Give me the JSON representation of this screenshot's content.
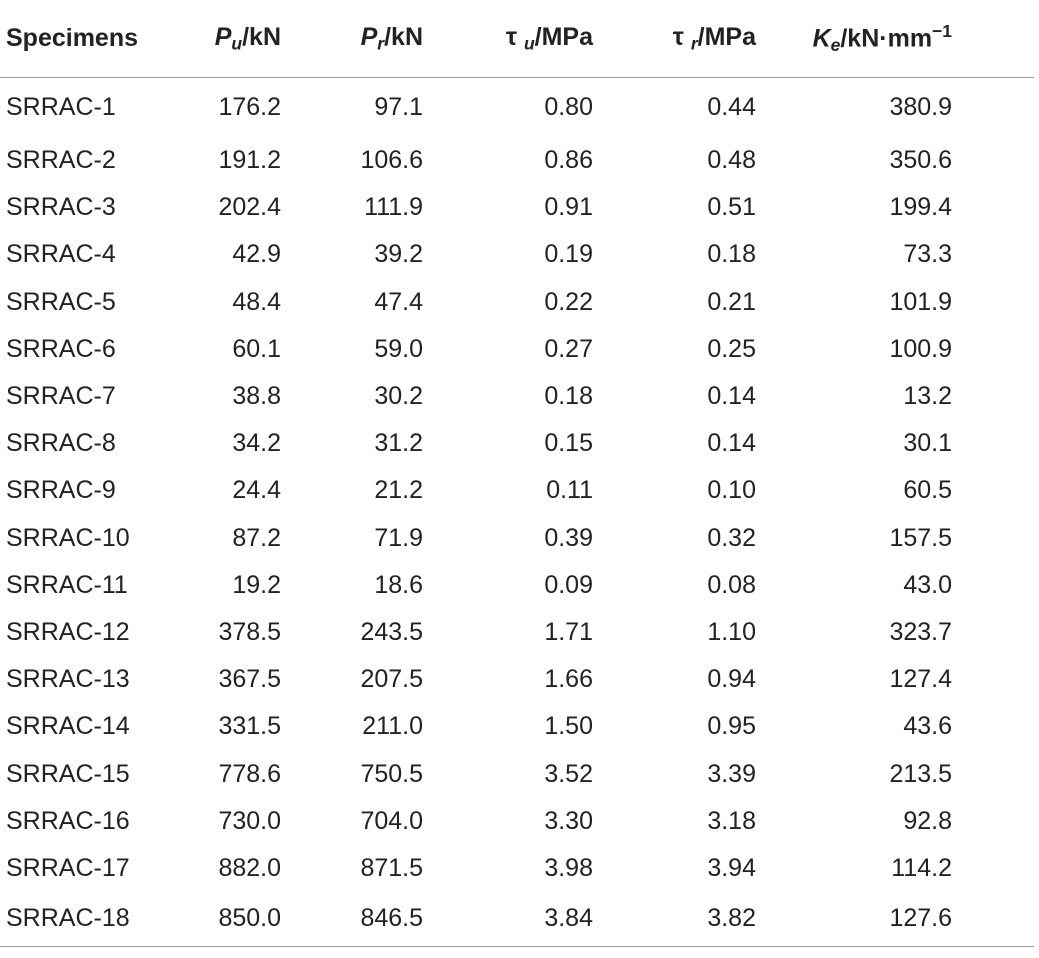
{
  "table": {
    "headers": {
      "specimens": "Specimens",
      "pu": {
        "symbol": "P",
        "sub": "u",
        "unit": "/kN"
      },
      "pr": {
        "symbol": "P",
        "sub": "r",
        "unit": "/kN"
      },
      "tu": {
        "symbol": "τ",
        "sub": "u",
        "unit": "/MPa"
      },
      "tr": {
        "symbol": "τ",
        "sub": "r",
        "unit": "/MPa"
      },
      "ke": {
        "symbol": "K",
        "sub": "e",
        "unit": "/kN·mm",
        "sup": "−1"
      }
    },
    "rows": [
      [
        "SRRAC-1",
        "176.2",
        "97.1",
        "0.80",
        "0.44",
        "380.9"
      ],
      [
        "SRRAC-2",
        "191.2",
        "106.6",
        "0.86",
        "0.48",
        "350.6"
      ],
      [
        "SRRAC-3",
        "202.4",
        "111.9",
        "0.91",
        "0.51",
        "199.4"
      ],
      [
        "SRRAC-4",
        "42.9",
        "39.2",
        "0.19",
        "0.18",
        "73.3"
      ],
      [
        "SRRAC-5",
        "48.4",
        "47.4",
        "0.22",
        "0.21",
        "101.9"
      ],
      [
        "SRRAC-6",
        "60.1",
        "59.0",
        "0.27",
        "0.25",
        "100.9"
      ],
      [
        "SRRAC-7",
        "38.8",
        "30.2",
        "0.18",
        "0.14",
        "13.2"
      ],
      [
        "SRRAC-8",
        "34.2",
        "31.2",
        "0.15",
        "0.14",
        "30.1"
      ],
      [
        "SRRAC-9",
        "24.4",
        "21.2",
        "0.11",
        "0.10",
        "60.5"
      ],
      [
        "SRRAC-10",
        "87.2",
        "71.9",
        "0.39",
        "0.32",
        "157.5"
      ],
      [
        "SRRAC-11",
        "19.2",
        "18.6",
        "0.09",
        "0.08",
        "43.0"
      ],
      [
        "SRRAC-12",
        "378.5",
        "243.5",
        "1.71",
        "1.10",
        "323.7"
      ],
      [
        "SRRAC-13",
        "367.5",
        "207.5",
        "1.66",
        "0.94",
        "127.4"
      ],
      [
        "SRRAC-14",
        "331.5",
        "211.0",
        "1.50",
        "0.95",
        "43.6"
      ],
      [
        "SRRAC-15",
        "778.6",
        "750.5",
        "3.52",
        "3.39",
        "213.5"
      ],
      [
        "SRRAC-16",
        "730.0",
        "704.0",
        "3.30",
        "3.18",
        "92.8"
      ],
      [
        "SRRAC-17",
        "882.0",
        "871.5",
        "3.98",
        "3.94",
        "114.2"
      ],
      [
        "SRRAC-18",
        "850.0",
        "846.5",
        "3.84",
        "3.82",
        "127.6"
      ]
    ]
  }
}
